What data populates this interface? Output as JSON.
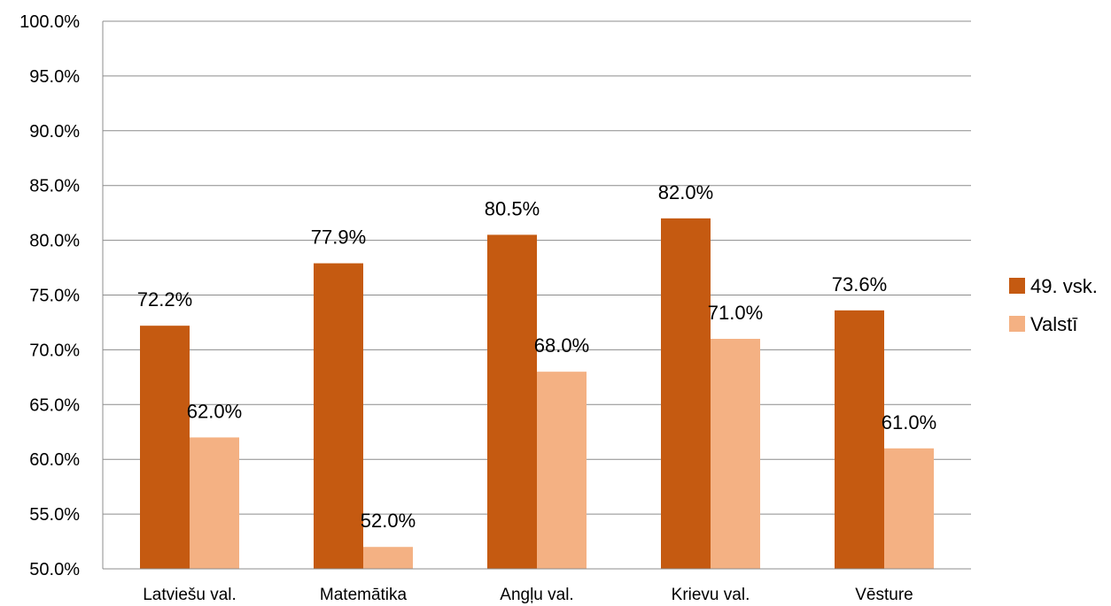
{
  "chart_data": {
    "type": "bar",
    "categories": [
      "Latviešu val.",
      "Matemātika",
      "Angļu val.",
      "Krievu val.",
      "Vēsture"
    ],
    "series": [
      {
        "name": "49. vsk.",
        "values": [
          72.2,
          77.9,
          80.5,
          82.0,
          73.6
        ],
        "labels": [
          "72.2%",
          "77.9%",
          "80.5%",
          "82.0%",
          "73.6%"
        ]
      },
      {
        "name": "Valstī",
        "values": [
          62.0,
          52.0,
          68.0,
          71.0,
          61.0
        ],
        "labels": [
          "62.0%",
          "52.0%",
          "68.0%",
          "71.0%",
          "61.0%"
        ]
      }
    ],
    "ylim": [
      50,
      100
    ],
    "yticks": [
      "50.0%",
      "55.0%",
      "60.0%",
      "65.0%",
      "70.0%",
      "75.0%",
      "80.0%",
      "85.0%",
      "90.0%",
      "95.0%",
      "100.0%"
    ],
    "grid": true,
    "legend_position": "right",
    "colors": {
      "49. vsk.": "#C55A11",
      "Valstī": "#F4B183"
    }
  }
}
